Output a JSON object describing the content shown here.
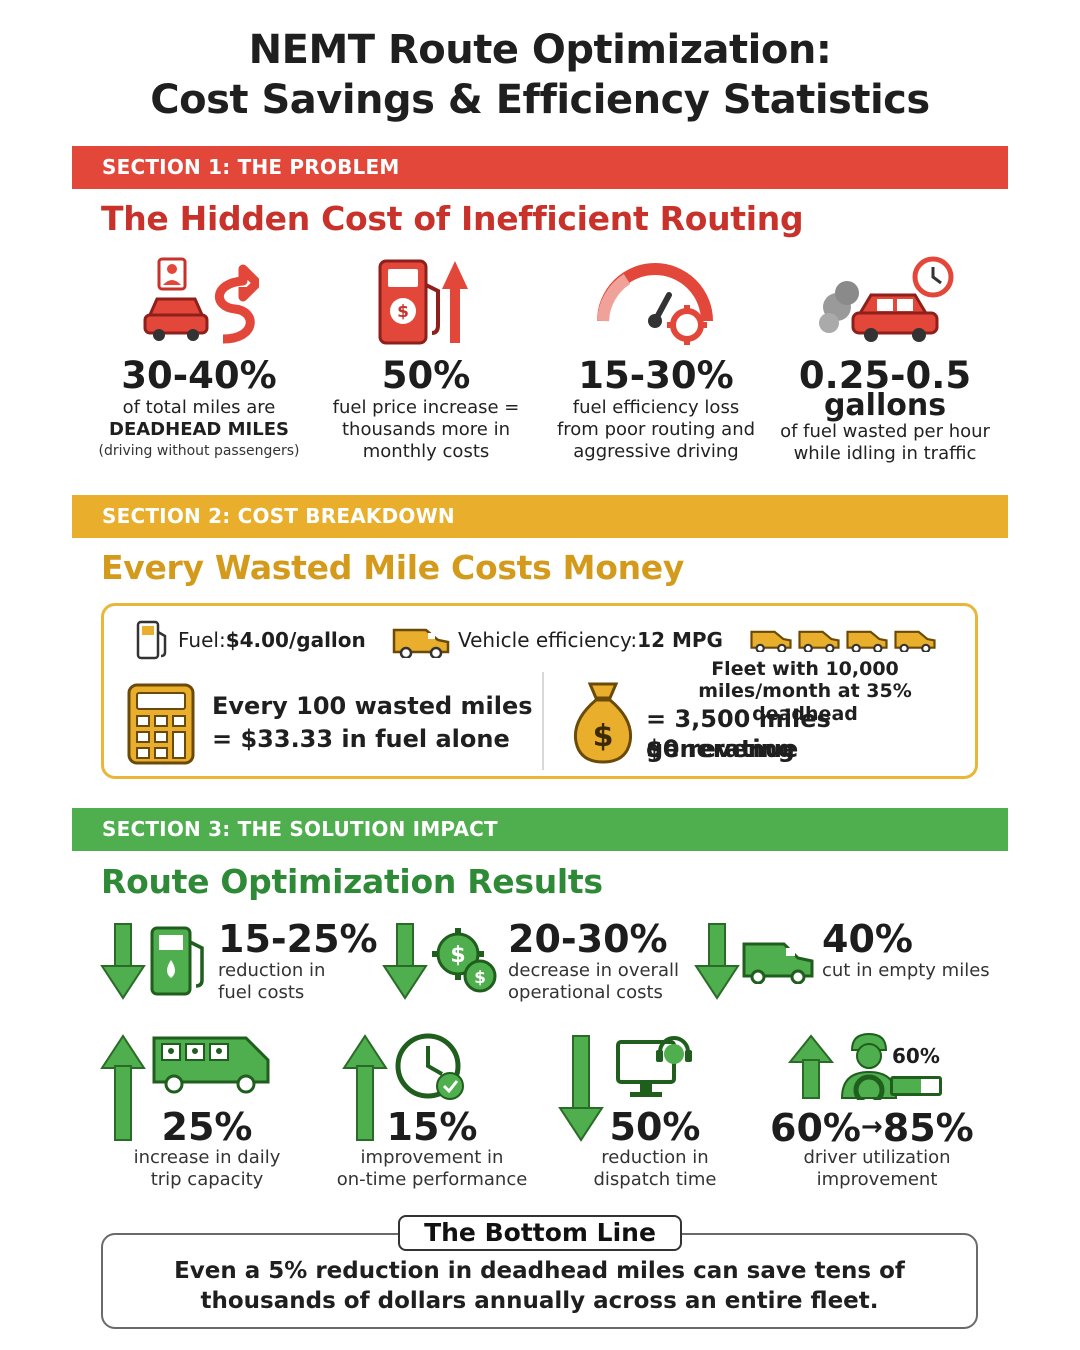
{
  "title": {
    "line1": "NEMT Route Optimization:",
    "line2": "Cost Savings & Efficiency Statistics"
  },
  "colors": {
    "red": "#e2473a",
    "gold": "#e8ae2c",
    "green": "#4fae4e"
  },
  "section1": {
    "banner": "SECTION 1: THE PROBLEM",
    "heading": "The Hidden Cost of Inefficient Routing",
    "stats": [
      {
        "icon": "car-detour-icon",
        "value": "30-40%",
        "line1": "of total miles are",
        "line2": "DEADHEAD MILES",
        "note": "(driving without passengers)"
      },
      {
        "icon": "fuel-price-up-icon",
        "value": "50%",
        "line1": "fuel price increase =",
        "line2": "thousands more in",
        "line3": "monthly costs"
      },
      {
        "icon": "efficiency-gauge-icon",
        "value": "15-30%",
        "line1": "fuel efficiency loss",
        "line2": "from poor routing and",
        "line3": "aggressive driving"
      },
      {
        "icon": "idling-car-clock-icon",
        "value": "0.25-0.5",
        "value2": "gallons",
        "line1": "of fuel wasted per hour",
        "line2": "while idling in traffic"
      }
    ]
  },
  "section2": {
    "banner": "SECTION 2: COST BREAKDOWN",
    "heading": "Every Wasted Mile Costs Money",
    "fuel_label": "Fuel: ",
    "fuel_value": "$4.00/gallon",
    "efficiency_label": "Vehicle efficiency: ",
    "efficiency_value": "12 MPG",
    "wasted_line1": "Every 100 wasted miles",
    "wasted_line2": "= $33.33 in fuel alone",
    "fleet_line1": "Fleet with 10,000",
    "fleet_line2": "miles/month at 35% deadhead",
    "fleet_line3": "= 3,500 miles generating",
    "fleet_line4": "$0 revenue"
  },
  "section3": {
    "banner": "SECTION 3: THE SOLUTION IMPACT",
    "heading": "Route Optimization Results",
    "results": [
      {
        "icon": "fuel-pump-icon",
        "direction": "down",
        "value": "15-25%",
        "line1": "reduction in",
        "line2": "fuel costs"
      },
      {
        "icon": "cost-gears-icon",
        "direction": "down",
        "value": "20-30%",
        "line1": "decrease in overall",
        "line2": "operational costs"
      },
      {
        "icon": "empty-van-icon",
        "direction": "down",
        "value": "40%",
        "line1": "cut in empty miles"
      },
      {
        "icon": "passenger-bus-icon",
        "direction": "up",
        "value": "25%",
        "line1": "increase in daily",
        "line2": "trip capacity"
      },
      {
        "icon": "on-time-clock-icon",
        "direction": "up",
        "value": "15%",
        "line1": "improvement in",
        "line2": "on-time performance"
      },
      {
        "icon": "dispatch-monitor-icon",
        "direction": "down",
        "value": "50%",
        "line1": "reduction in",
        "line2": "dispatch time"
      },
      {
        "icon": "driver-icon",
        "direction": "up",
        "badge": "60%",
        "value_from": "60%",
        "arrow": "→",
        "value_to": "85%",
        "line1": "driver utilization",
        "line2": "improvement"
      }
    ]
  },
  "bottom": {
    "label": "The Bottom Line",
    "line1": "Even a 5% reduction in deadhead miles can save tens of",
    "line2": "thousands of dollars annually across an entire fleet."
  }
}
